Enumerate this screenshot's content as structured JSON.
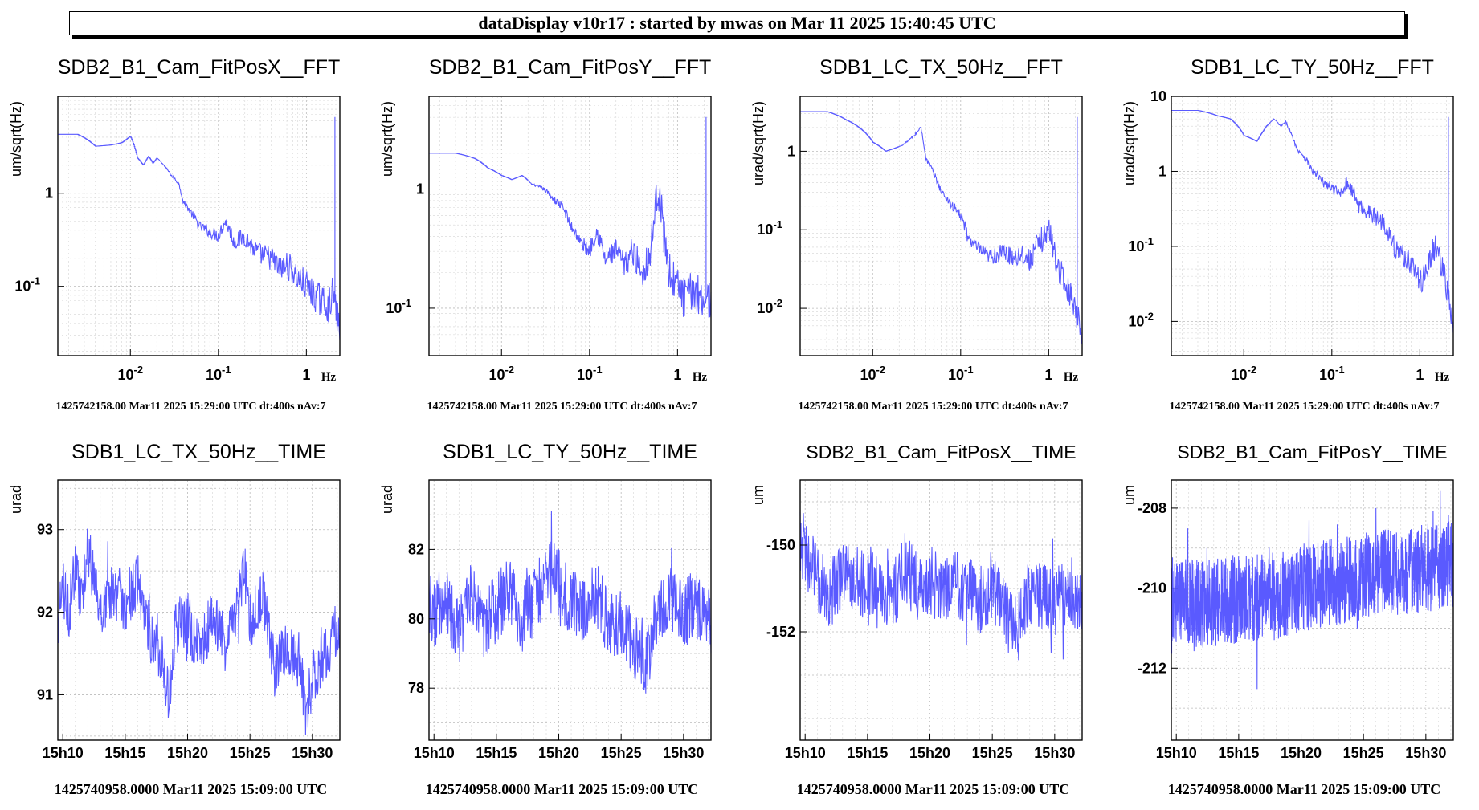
{
  "header": {
    "title": "dataDisplay v10r17 : started by mwas on Mar 11 2025 15:40:45 UTC"
  },
  "colors": {
    "trace": "#5a5aff",
    "grid": "#bbbbbb",
    "frame": "#000000"
  },
  "chart_data": [
    {
      "type": "line",
      "scale": "loglog",
      "title": "SDB2_B1_Cam_FitPosX__FFT",
      "ylabel": "um/sqrt(Hz)",
      "xunit": "Hz",
      "xlim": [
        0.0015,
        2.4
      ],
      "ylim": [
        0.018,
        11
      ],
      "xticks": [
        {
          "v": 0.01,
          "b": "10",
          "e": "-2"
        },
        {
          "v": 0.1,
          "b": "10",
          "e": "-1"
        },
        {
          "v": 1,
          "b": "1",
          "e": ""
        }
      ],
      "yticks": [
        {
          "v": 1,
          "b": "1",
          "e": ""
        },
        {
          "v": 0.1,
          "b": "10",
          "e": "-1"
        }
      ],
      "series": [
        {
          "x": [
            0.0015,
            0.0025,
            0.004,
            0.006,
            0.008,
            0.01,
            0.012,
            0.014,
            0.016,
            0.018,
            0.02,
            0.025,
            0.03,
            0.035,
            0.04,
            0.05,
            0.06,
            0.08,
            0.1,
            0.12,
            0.15,
            0.2,
            0.25,
            0.3,
            0.4,
            0.5,
            0.6,
            0.8,
            1.0,
            1.2,
            1.5,
            1.8,
            2.0,
            2.2,
            2.4
          ],
          "y": [
            4.3,
            4.3,
            3.2,
            3.3,
            3.5,
            4.1,
            2.4,
            2.0,
            2.5,
            2.1,
            2.4,
            1.9,
            1.5,
            1.3,
            0.8,
            0.6,
            0.45,
            0.38,
            0.35,
            0.5,
            0.3,
            0.34,
            0.25,
            0.22,
            0.2,
            0.15,
            0.17,
            0.12,
            0.1,
            0.08,
            0.07,
            0.06,
            0.09,
            0.05,
            0.035
          ]
        }
      ],
      "footer": "1425742158.00 Mar11 2025 15:29:00 UTC dt:400s nAv:7"
    },
    {
      "type": "line",
      "scale": "loglog",
      "title": "SDB2_B1_Cam_FitPosY__FFT",
      "ylabel": "um/sqrt(Hz)",
      "xunit": "Hz",
      "xlim": [
        0.0015,
        2.4
      ],
      "ylim": [
        0.04,
        6
      ],
      "xticks": [
        {
          "v": 0.01,
          "b": "10",
          "e": "-2"
        },
        {
          "v": 0.1,
          "b": "10",
          "e": "-1"
        },
        {
          "v": 1,
          "b": "1",
          "e": ""
        }
      ],
      "yticks": [
        {
          "v": 1,
          "b": "1",
          "e": ""
        },
        {
          "v": 0.1,
          "b": "10",
          "e": "-1"
        }
      ],
      "series": [
        {
          "x": [
            0.0015,
            0.003,
            0.005,
            0.007,
            0.01,
            0.013,
            0.017,
            0.022,
            0.03,
            0.04,
            0.05,
            0.06,
            0.08,
            0.1,
            0.12,
            0.15,
            0.2,
            0.25,
            0.3,
            0.4,
            0.5,
            0.6,
            0.7,
            0.8,
            1.0,
            1.2,
            1.5,
            1.8,
            2.1,
            2.4
          ],
          "y": [
            2.0,
            2.0,
            1.8,
            1.5,
            1.3,
            1.2,
            1.3,
            1.1,
            1.0,
            0.8,
            0.7,
            0.5,
            0.35,
            0.3,
            0.45,
            0.25,
            0.3,
            0.22,
            0.3,
            0.2,
            0.3,
            1.0,
            0.4,
            0.2,
            0.15,
            0.12,
            0.14,
            0.13,
            0.12,
            0.12
          ]
        }
      ],
      "footer": "1425742158.00 Mar11 2025 15:29:00 UTC dt:400s nAv:7"
    },
    {
      "type": "line",
      "scale": "loglog",
      "title": "SDB1_LC_TX_50Hz__FFT",
      "ylabel": "urad/sqrt(Hz)",
      "xunit": "Hz",
      "xlim": [
        0.0015,
        2.4
      ],
      "ylim": [
        0.0025,
        5
      ],
      "xticks": [
        {
          "v": 0.01,
          "b": "10",
          "e": "-2"
        },
        {
          "v": 0.1,
          "b": "10",
          "e": "-1"
        },
        {
          "v": 1,
          "b": "1",
          "e": ""
        }
      ],
      "yticks": [
        {
          "v": 1,
          "b": "1",
          "e": ""
        },
        {
          "v": 0.1,
          "b": "10",
          "e": "-1"
        },
        {
          "v": 0.01,
          "b": "10",
          "e": "-2"
        }
      ],
      "series": [
        {
          "x": [
            0.0015,
            0.003,
            0.005,
            0.007,
            0.01,
            0.014,
            0.018,
            0.022,
            0.026,
            0.03,
            0.035,
            0.04,
            0.05,
            0.06,
            0.08,
            0.1,
            0.12,
            0.15,
            0.2,
            0.3,
            0.4,
            0.5,
            0.6,
            0.8,
            1.0,
            1.2,
            1.5,
            1.8,
            2.1,
            2.4
          ],
          "y": [
            3.2,
            3.2,
            2.5,
            2.0,
            1.3,
            1.0,
            1.1,
            1.2,
            1.4,
            1.6,
            2.0,
            0.8,
            0.5,
            0.3,
            0.2,
            0.15,
            0.08,
            0.06,
            0.045,
            0.05,
            0.045,
            0.05,
            0.04,
            0.07,
            0.1,
            0.04,
            0.02,
            0.015,
            0.008,
            0.005
          ]
        }
      ],
      "footer": "1425742158.00 Mar11 2025 15:29:00 UTC dt:400s nAv:7"
    },
    {
      "type": "line",
      "scale": "loglog",
      "title": "SDB1_LC_TY_50Hz__FFT",
      "ylabel": "urad/sqrt(Hz)",
      "xunit": "Hz",
      "xlim": [
        0.0015,
        2.4
      ],
      "ylim": [
        0.0035,
        10
      ],
      "xticks": [
        {
          "v": 0.01,
          "b": "10",
          "e": "-2"
        },
        {
          "v": 0.1,
          "b": "10",
          "e": "-1"
        },
        {
          "v": 1,
          "b": "1",
          "e": ""
        }
      ],
      "yticks": [
        {
          "v": 10,
          "b": "10",
          "e": ""
        },
        {
          "v": 1,
          "b": "1",
          "e": ""
        },
        {
          "v": 0.1,
          "b": "10",
          "e": "-1"
        },
        {
          "v": 0.01,
          "b": "10",
          "e": "-2"
        }
      ],
      "series": [
        {
          "x": [
            0.0015,
            0.003,
            0.005,
            0.007,
            0.01,
            0.014,
            0.018,
            0.022,
            0.026,
            0.03,
            0.035,
            0.04,
            0.05,
            0.06,
            0.08,
            0.1,
            0.12,
            0.15,
            0.2,
            0.3,
            0.4,
            0.5,
            0.6,
            0.8,
            1.0,
            1.2,
            1.5,
            1.8,
            2.1,
            2.4
          ],
          "y": [
            6.5,
            6.5,
            5.5,
            5.0,
            3.0,
            2.5,
            4.0,
            5.0,
            4.0,
            4.5,
            3.0,
            2.0,
            1.5,
            1.0,
            0.7,
            0.6,
            0.5,
            0.7,
            0.35,
            0.25,
            0.2,
            0.1,
            0.08,
            0.06,
            0.03,
            0.05,
            0.1,
            0.05,
            0.02,
            0.006
          ]
        }
      ],
      "footer": "1425742158.00 Mar11 2025 15:29:00 UTC dt:400s nAv:7"
    },
    {
      "type": "line",
      "scale": "linear",
      "title": "SDB1_LC_TX_50Hz__TIME",
      "titleSize": "large",
      "ylabel": "urad",
      "xlim": [
        9.6,
        32.2
      ],
      "ylim": [
        90.45,
        93.6
      ],
      "xticks": [
        {
          "v": 10,
          "label": "15h10"
        },
        {
          "v": 15,
          "label": "15h15"
        },
        {
          "v": 20,
          "label": "15h20"
        },
        {
          "v": 25,
          "label": "15h25"
        },
        {
          "v": 30,
          "label": "15h30"
        }
      ],
      "yticks": [
        {
          "v": 91,
          "label": "91"
        },
        {
          "v": 92,
          "label": "92"
        },
        {
          "v": 93,
          "label": "93"
        }
      ],
      "series": [
        {
          "x": [
            9.6,
            10,
            10.5,
            11,
            11.5,
            12,
            12.5,
            13,
            14,
            15,
            16,
            17,
            18,
            18.5,
            19,
            20,
            21,
            22,
            23,
            24,
            24.5,
            25,
            26,
            27,
            28,
            29,
            29.5,
            30,
            31,
            32,
            32.2
          ],
          "y": [
            91.8,
            92.3,
            92.0,
            92.6,
            92.1,
            92.8,
            92.4,
            92.0,
            92.3,
            92.1,
            92.4,
            91.7,
            91.5,
            90.9,
            91.8,
            91.9,
            91.5,
            92.0,
            91.6,
            92.0,
            92.6,
            91.9,
            92.2,
            91.3,
            91.6,
            91.4,
            90.8,
            91.2,
            91.5,
            91.8,
            91.7
          ]
        }
      ],
      "noise": 0.35,
      "footer": "1425740958.0000 Mar11 2025 15:09:00 UTC"
    },
    {
      "type": "line",
      "scale": "linear",
      "title": "SDB1_LC_TY_50Hz__TIME",
      "titleSize": "large",
      "ylabel": "urad",
      "xlim": [
        9.6,
        32.2
      ],
      "ylim": [
        76.5,
        84.0
      ],
      "xticks": [
        {
          "v": 10,
          "label": "15h10"
        },
        {
          "v": 15,
          "label": "15h15"
        },
        {
          "v": 20,
          "label": "15h20"
        },
        {
          "v": 25,
          "label": "15h25"
        },
        {
          "v": 30,
          "label": "15h30"
        }
      ],
      "yticks": [
        {
          "v": 78,
          "label": "78"
        },
        {
          "v": 80,
          "label": "80"
        },
        {
          "v": 82,
          "label": "82"
        }
      ],
      "series": [
        {
          "x": [
            9.6,
            10,
            11,
            12,
            13,
            14,
            15,
            16,
            17,
            18,
            19,
            19.5,
            20,
            21,
            22,
            23,
            24,
            25,
            26,
            27,
            28,
            29,
            30,
            31,
            32,
            32.2
          ],
          "y": [
            80.5,
            80.0,
            80.5,
            79.5,
            80.8,
            79.8,
            80.3,
            80.8,
            80.0,
            80.5,
            81.2,
            82.0,
            81.0,
            80.5,
            80.3,
            80.7,
            79.8,
            80.0,
            79.2,
            78.8,
            80.2,
            80.5,
            80.2,
            80.4,
            80.3,
            80.0
          ]
        }
      ],
      "noise": 1.0,
      "footer": "1425740958.0000 Mar11 2025 15:09:00 UTC"
    },
    {
      "type": "line",
      "scale": "linear",
      "title": "SDB2_B1_Cam_FitPosX__TIME",
      "titleSize": "small",
      "ylabel": "um",
      "xlim": [
        9.6,
        32.2
      ],
      "ylim": [
        -154.5,
        -148.5
      ],
      "xticks": [
        {
          "v": 10,
          "label": "15h10"
        },
        {
          "v": 15,
          "label": "15h15"
        },
        {
          "v": 20,
          "label": "15h20"
        },
        {
          "v": 25,
          "label": "15h25"
        },
        {
          "v": 30,
          "label": "15h30"
        }
      ],
      "yticks": [
        {
          "v": -152,
          "label": "-152"
        },
        {
          "v": -150,
          "label": "-150"
        }
      ],
      "series": [
        {
          "x": [
            9.6,
            10,
            11,
            12,
            13,
            14,
            15,
            16,
            17,
            18,
            19,
            20,
            21,
            22,
            23,
            24,
            25,
            26,
            27,
            28,
            29,
            30,
            31,
            32,
            32.2
          ],
          "y": [
            -149.8,
            -150.2,
            -150.8,
            -151.2,
            -150.6,
            -151.0,
            -150.8,
            -150.9,
            -151.2,
            -150.5,
            -151.0,
            -150.8,
            -151.1,
            -150.9,
            -151.0,
            -151.3,
            -150.9,
            -151.6,
            -152.0,
            -151.0,
            -151.2,
            -151.4,
            -151.0,
            -151.2,
            -151.3
          ]
        }
      ],
      "noise": 0.8,
      "footer": "1425740958.0000 Mar11 2025 15:09:00 UTC"
    },
    {
      "type": "line",
      "scale": "linear",
      "title": "SDB2_B1_Cam_FitPosY__TIME",
      "titleSize": "small",
      "ylabel": "um",
      "xlim": [
        9.6,
        32.2
      ],
      "ylim": [
        -213.8,
        -207.3
      ],
      "xticks": [
        {
          "v": 10,
          "label": "15h10"
        },
        {
          "v": 15,
          "label": "15h15"
        },
        {
          "v": 20,
          "label": "15h20"
        },
        {
          "v": 25,
          "label": "15h25"
        },
        {
          "v": 30,
          "label": "15h30"
        }
      ],
      "yticks": [
        {
          "v": -212,
          "label": "-212"
        },
        {
          "v": -210,
          "label": "-210"
        },
        {
          "v": -208,
          "label": "-208"
        }
      ],
      "series": [
        {
          "x": [
            9.6,
            12,
            15,
            18,
            20,
            22,
            24,
            26,
            28,
            30,
            32.2
          ],
          "y": [
            -210.3,
            -210.4,
            -210.3,
            -210.2,
            -210.0,
            -209.9,
            -209.8,
            -209.6,
            -209.6,
            -209.5,
            -209.4
          ]
        }
      ],
      "noise": 1.1,
      "dense": true,
      "footer": "1425740958.0000 Mar11 2025 15:09:00 UTC"
    }
  ]
}
